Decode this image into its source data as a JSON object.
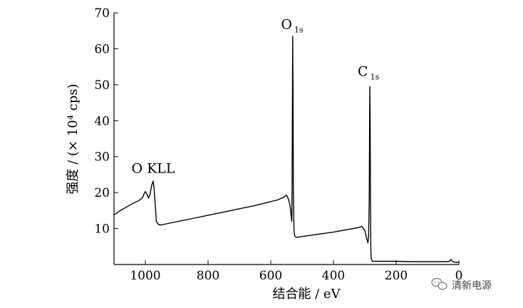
{
  "chart_data": {
    "type": "line",
    "xlabel": "结合能 / eV",
    "ylabel": "强度 / (× 10⁴ cps)",
    "xlim": [
      1100,
      0
    ],
    "ylim": [
      0,
      70
    ],
    "x_ticks": [
      1000,
      800,
      600,
      400,
      200,
      0
    ],
    "y_ticks": [
      10,
      20,
      30,
      40,
      50,
      60,
      70
    ],
    "grid": false,
    "legend": "none",
    "annotations": [
      {
        "label": "O KLL",
        "x": 975,
        "y": 25.5
      },
      {
        "label": "O",
        "sub": "1s",
        "x": 531,
        "y": 65.5
      },
      {
        "label": "C",
        "sub": "1s",
        "x": 284,
        "y": 52.5
      }
    ],
    "series": [
      {
        "x": [
          1100,
          1080,
          1060,
          1040,
          1020,
          1010,
          1005,
          1000,
          995,
          990,
          985,
          980,
          975,
          972,
          968,
          965,
          960,
          955,
          950,
          900,
          850,
          800,
          750,
          700,
          650,
          600,
          580,
          570,
          560,
          555,
          550,
          545,
          540,
          538,
          535,
          533,
          532,
          531,
          530,
          529,
          528,
          526,
          524,
          522,
          520,
          515,
          500,
          450,
          400,
          350,
          320,
          310,
          300,
          295,
          290,
          288,
          286,
          285,
          284,
          283,
          282,
          281,
          280,
          278,
          275,
          270,
          250,
          200,
          150,
          100,
          60,
          40,
          30,
          25,
          20,
          10,
          0
        ],
        "y": [
          13.8,
          15.0,
          16.0,
          17.0,
          17.8,
          18.5,
          19.5,
          20.3,
          19.5,
          18.5,
          19.5,
          22.0,
          23.2,
          21.0,
          16.0,
          12.0,
          11.3,
          11.0,
          11.0,
          11.9,
          12.8,
          13.7,
          14.6,
          15.5,
          16.4,
          17.5,
          17.9,
          18.3,
          18.6,
          19.0,
          19.3,
          18.5,
          17.0,
          16.0,
          13.5,
          12.0,
          20.0,
          45.0,
          63.5,
          50.0,
          20.0,
          9.5,
          8.2,
          7.8,
          7.6,
          7.6,
          7.8,
          8.4,
          9.0,
          9.8,
          10.3,
          10.6,
          9.5,
          7.5,
          6.0,
          8.0,
          18.0,
          35.0,
          49.5,
          40.0,
          20.0,
          5.0,
          1.8,
          1.2,
          0.9,
          0.9,
          0.9,
          0.9,
          0.8,
          0.8,
          0.8,
          0.8,
          0.9,
          1.4,
          0.8,
          0.6,
          0.6
        ]
      }
    ]
  },
  "watermark": {
    "text": "清新电源",
    "icon": "wechat-icon"
  }
}
